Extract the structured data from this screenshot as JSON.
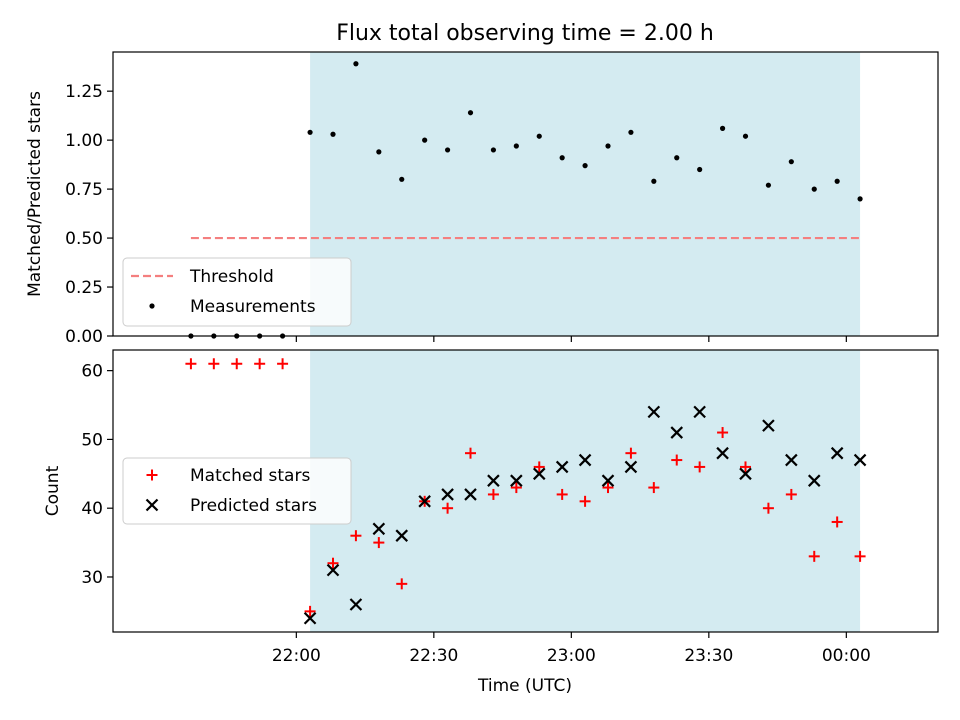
{
  "title": "Flux total observing time = 2.00 h",
  "colors": {
    "shade": "#d4ebf1",
    "threshold": "#f47f7f",
    "measurement": "#000000",
    "matched": "#ff0000",
    "predicted": "#000000"
  },
  "chart_data": [
    {
      "type": "scatter",
      "ylabel": "Matched/Predicted stars",
      "ylim": [
        0,
        1.45
      ],
      "yticks": [
        "0.00",
        "0.25",
        "0.50",
        "0.75",
        "1.00",
        "1.25"
      ],
      "grid": false,
      "legend_placement": "lower-left",
      "shaded_range": [
        "22:03",
        "24:03"
      ],
      "series": [
        {
          "name": "Threshold",
          "style": "dashed-line",
          "x": [
            "21:37",
            "24:03"
          ],
          "y": [
            0.5,
            0.5
          ]
        },
        {
          "name": "Measurements",
          "style": "dot",
          "x": [
            "21:37",
            "21:42",
            "21:47",
            "21:52",
            "21:57",
            "22:03",
            "22:08",
            "22:13",
            "22:18",
            "22:23",
            "22:28",
            "22:33",
            "22:38",
            "22:43",
            "22:48",
            "22:53",
            "22:58",
            "23:03",
            "23:08",
            "23:13",
            "23:18",
            "23:23",
            "23:28",
            "23:33",
            "23:38",
            "23:43",
            "23:48",
            "23:53",
            "23:58",
            "24:03"
          ],
          "y": [
            0.0,
            0.0,
            0.0,
            0.0,
            0.0,
            1.04,
            1.03,
            1.39,
            0.94,
            0.8,
            1.0,
            0.95,
            1.14,
            0.95,
            0.97,
            1.02,
            0.91,
            0.87,
            0.97,
            1.04,
            0.79,
            0.91,
            0.85,
            1.06,
            1.02,
            0.77,
            0.89,
            0.75,
            0.79,
            0.7
          ]
        }
      ]
    },
    {
      "type": "scatter",
      "xlabel": "Time (UTC)",
      "ylabel": "Count",
      "ylim": [
        22,
        63
      ],
      "yticks": [
        "30",
        "40",
        "50",
        "60"
      ],
      "xticks": [
        "22:00",
        "22:30",
        "23:00",
        "23:30",
        "00:00"
      ],
      "grid": false,
      "legend_placement": "center-left",
      "shaded_range": [
        "22:03",
        "24:03"
      ],
      "series": [
        {
          "name": "Matched stars",
          "style": "plus",
          "x": [
            "21:37",
            "21:42",
            "21:47",
            "21:52",
            "21:57",
            "22:03",
            "22:08",
            "22:13",
            "22:18",
            "22:23",
            "22:28",
            "22:33",
            "22:38",
            "22:43",
            "22:48",
            "22:53",
            "22:58",
            "23:03",
            "23:08",
            "23:13",
            "23:18",
            "23:23",
            "23:28",
            "23:33",
            "23:38",
            "23:43",
            "23:48",
            "23:53",
            "23:58",
            "24:03"
          ],
          "y": [
            61,
            61,
            61,
            61,
            61,
            25,
            32,
            36,
            35,
            29,
            41,
            40,
            48,
            42,
            43,
            46,
            42,
            41,
            43,
            48,
            43,
            47,
            46,
            51,
            46,
            40,
            42,
            33,
            38,
            33
          ]
        },
        {
          "name": "Predicted stars",
          "style": "cross",
          "x": [
            "22:03",
            "22:08",
            "22:13",
            "22:18",
            "22:23",
            "22:28",
            "22:33",
            "22:38",
            "22:43",
            "22:48",
            "22:53",
            "22:58",
            "23:03",
            "23:08",
            "23:13",
            "23:18",
            "23:23",
            "23:28",
            "23:33",
            "23:38",
            "23:43",
            "23:48",
            "23:53",
            "23:58",
            "24:03"
          ],
          "y": [
            24,
            31,
            26,
            37,
            36,
            41,
            42,
            42,
            44,
            44,
            45,
            46,
            47,
            44,
            46,
            54,
            51,
            54,
            48,
            45,
            52,
            47,
            44,
            48,
            47
          ]
        }
      ]
    }
  ]
}
